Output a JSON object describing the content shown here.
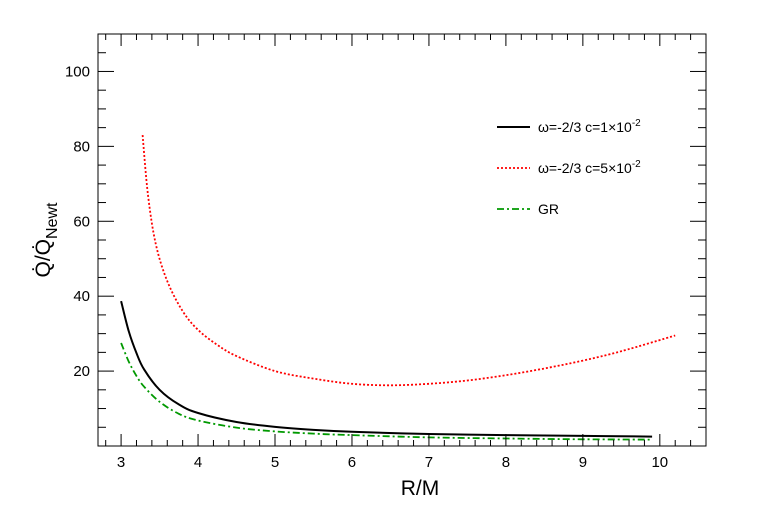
{
  "chart_data": {
    "type": "line",
    "title": "",
    "xlabel": "R/M",
    "ylabel": "Q̇/Q̇Newt",
    "ylabel_parts": {
      "main": "Q̇/Q̇",
      "subscript": "Newt"
    },
    "xlim": [
      2.7,
      10.6
    ],
    "ylim": [
      0,
      110
    ],
    "x_ticks": [
      3,
      4,
      5,
      6,
      7,
      8,
      9,
      10
    ],
    "y_ticks": [
      20,
      40,
      60,
      80,
      100
    ],
    "grid": false,
    "legend_position": "top-right",
    "series": [
      {
        "name": "ω=-2/3 c=1×10⁻²",
        "label_parts": {
          "main": "ω=-2/3 c=1×10",
          "sup": "-2"
        },
        "color": "#000000",
        "style": "solid",
        "x": [
          3.0,
          3.1,
          3.2,
          3.3,
          3.5,
          3.75,
          4.0,
          4.5,
          5.0,
          5.5,
          6.0,
          7.0,
          8.0,
          9.0,
          9.9
        ],
        "y": [
          38.7,
          30.6,
          24.8,
          20.4,
          15.0,
          11.1,
          8.8,
          6.4,
          5.1,
          4.3,
          3.8,
          3.2,
          2.9,
          2.7,
          2.5
        ]
      },
      {
        "name": "ω=-2/3 c=5×10⁻²",
        "label_parts": {
          "main": "ω=-2/3 c=5×10",
          "sup": "-2"
        },
        "color": "#ff0000",
        "style": "dotted",
        "x": [
          3.28,
          3.35,
          3.45,
          3.6,
          3.8,
          4.0,
          4.25,
          4.5,
          5.0,
          5.5,
          6.0,
          6.5,
          7.0,
          7.5,
          8.0,
          8.5,
          9.0,
          9.5,
          10.2
        ],
        "y": [
          83,
          67,
          54,
          44,
          36,
          31,
          27,
          24,
          20,
          18,
          16.6,
          16.2,
          16.6,
          17.5,
          18.9,
          20.7,
          22.8,
          25.3,
          29.5
        ]
      },
      {
        "name": "GR",
        "label_parts": {
          "main": "GR",
          "sup": ""
        },
        "color": "#009900",
        "style": "dash-dot",
        "x": [
          3.0,
          3.1,
          3.2,
          3.3,
          3.5,
          3.75,
          4.0,
          4.5,
          5.0,
          5.5,
          6.0,
          7.0,
          8.0,
          9.0,
          9.9
        ],
        "y": [
          27.5,
          22.5,
          18.7,
          15.8,
          11.8,
          8.6,
          6.8,
          4.9,
          3.9,
          3.3,
          2.9,
          2.3,
          2.0,
          1.8,
          1.7
        ]
      }
    ]
  }
}
